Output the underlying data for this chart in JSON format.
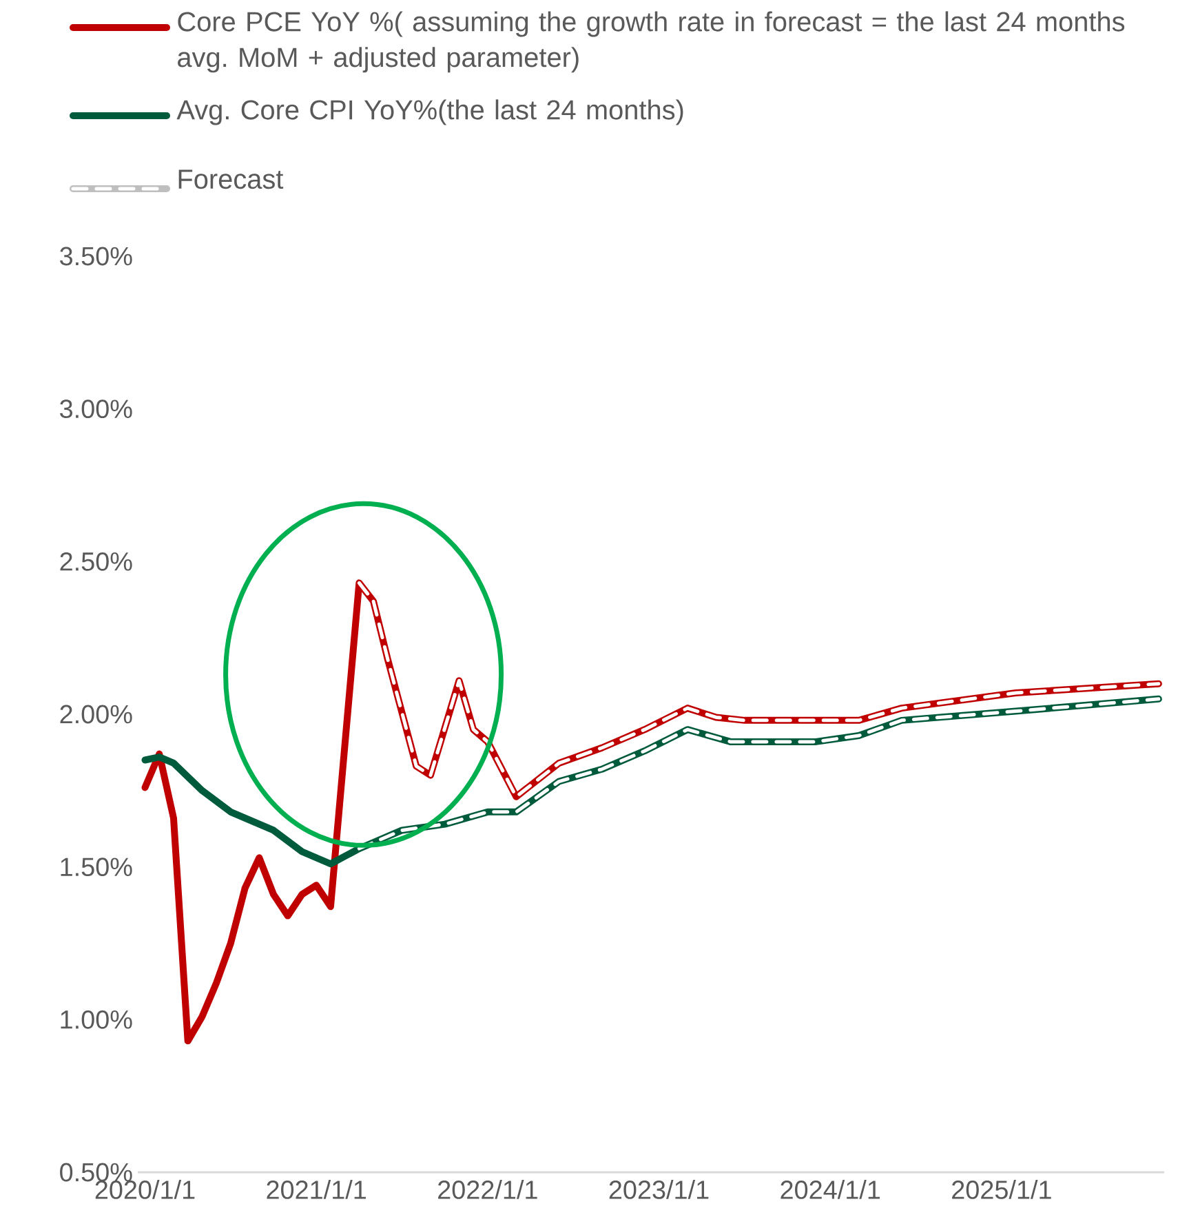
{
  "chart_data": {
    "type": "line",
    "legend": "top",
    "marker": "none",
    "xlim": [
      "2019-12-16",
      "2025-12-13"
    ],
    "ylim": [
      0.5,
      3.5
    ],
    "xticks": [
      {
        "value": "2020-01-01",
        "label": "2020/1/1"
      },
      {
        "value": "2021-01-01",
        "label": "2021/1/1"
      },
      {
        "value": "2022-01-01",
        "label": "2022/1/1"
      },
      {
        "value": "2023-01-01",
        "label": "2023/1/1"
      },
      {
        "value": "2024-01-01",
        "label": "2024/1/1"
      },
      {
        "value": "2025-01-01",
        "label": "2025/1/1"
      }
    ],
    "yticks": [
      {
        "value": 0.5,
        "label": "0.50%"
      },
      {
        "value": 1.0,
        "label": "1.00%"
      },
      {
        "value": 1.5,
        "label": "1.50%"
      },
      {
        "value": 2.0,
        "label": "2.00%"
      },
      {
        "value": 2.5,
        "label": "2.50%"
      },
      {
        "value": 3.0,
        "label": "3.00%"
      },
      {
        "value": 3.5,
        "label": "3.50%"
      }
    ],
    "series": [
      {
        "name": "Core PCE YoY %( assuming the growth rate in forecast = the last 24 months avg. MoM + adjusted parameter)",
        "color": "#c00000",
        "line_style": "solid",
        "x": [
          "2020-01",
          "2020-02",
          "2020-03",
          "2020-04",
          "2020-05",
          "2020-06",
          "2020-07",
          "2020-08",
          "2020-09",
          "2020-10",
          "2020-11",
          "2020-12",
          "2021-01",
          "2021-02",
          "2021-04",
          "2021-05",
          "2021-06",
          "2021-08",
          "2021-09",
          "2021-11",
          "2021-12",
          "2022-01",
          "2022-03",
          "2022-06",
          "2022-09",
          "2022-12",
          "2023-03",
          "2023-05",
          "2023-07",
          "2024-03",
          "2024-06",
          "2025-02",
          "2025-12"
        ],
        "values": [
          1.76,
          1.87,
          1.66,
          0.93,
          1.01,
          1.12,
          1.25,
          1.43,
          1.53,
          1.41,
          1.34,
          1.41,
          1.44,
          1.37,
          2.43,
          2.37,
          2.18,
          1.83,
          1.8,
          2.11,
          1.95,
          1.91,
          1.73,
          1.84,
          1.89,
          1.95,
          2.02,
          1.99,
          1.98,
          1.98,
          2.02,
          2.07,
          2.1
        ]
      },
      {
        "name": "Avg. Core CPI YoY%(the last 24 months)",
        "color": "#005a3c",
        "line_style": "solid",
        "x": [
          "2020-01",
          "2020-02",
          "2020-03",
          "2020-05",
          "2020-07",
          "2020-10",
          "2020-12",
          "2021-02",
          "2021-04",
          "2021-07",
          "2021-10",
          "2022-01",
          "2022-03",
          "2022-06",
          "2022-09",
          "2022-12",
          "2023-03",
          "2023-06",
          "2023-12",
          "2024-03",
          "2024-06",
          "2025-02",
          "2025-12"
        ],
        "values": [
          1.85,
          1.86,
          1.84,
          1.75,
          1.68,
          1.62,
          1.55,
          1.51,
          1.56,
          1.62,
          1.64,
          1.68,
          1.68,
          1.78,
          1.82,
          1.88,
          1.95,
          1.91,
          1.91,
          1.93,
          1.98,
          2.01,
          2.05
        ]
      },
      {
        "name": "Forecast",
        "color": "#ffffff",
        "line_style": "dashed",
        "x": [
          "2021-04",
          "2021-05",
          "2021-06",
          "2021-08",
          "2021-09",
          "2021-11",
          "2021-12",
          "2022-01",
          "2022-03",
          "2022-06",
          "2022-09",
          "2022-12",
          "2023-03",
          "2023-05",
          "2023-07",
          "2024-03",
          "2024-06",
          "2025-02",
          "2025-12"
        ],
        "values": [
          2.43,
          2.37,
          2.18,
          1.83,
          1.8,
          2.11,
          1.95,
          1.91,
          1.73,
          1.84,
          1.89,
          1.95,
          2.02,
          1.99,
          1.98,
          1.98,
          2.02,
          2.07,
          2.1
        ]
      },
      {
        "color": "#ffffff",
        "line_style": "dashed",
        "x": [
          "2021-04",
          "2021-07",
          "2021-10",
          "2022-01",
          "2022-03",
          "2022-06",
          "2022-09",
          "2022-12",
          "2023-03",
          "2023-06",
          "2023-12",
          "2024-03",
          "2024-06",
          "2025-02",
          "2025-12"
        ],
        "values": [
          1.56,
          1.62,
          1.64,
          1.68,
          1.68,
          1.78,
          1.82,
          1.88,
          1.95,
          1.91,
          1.91,
          1.93,
          1.98,
          2.01,
          2.05
        ]
      }
    ]
  }
}
